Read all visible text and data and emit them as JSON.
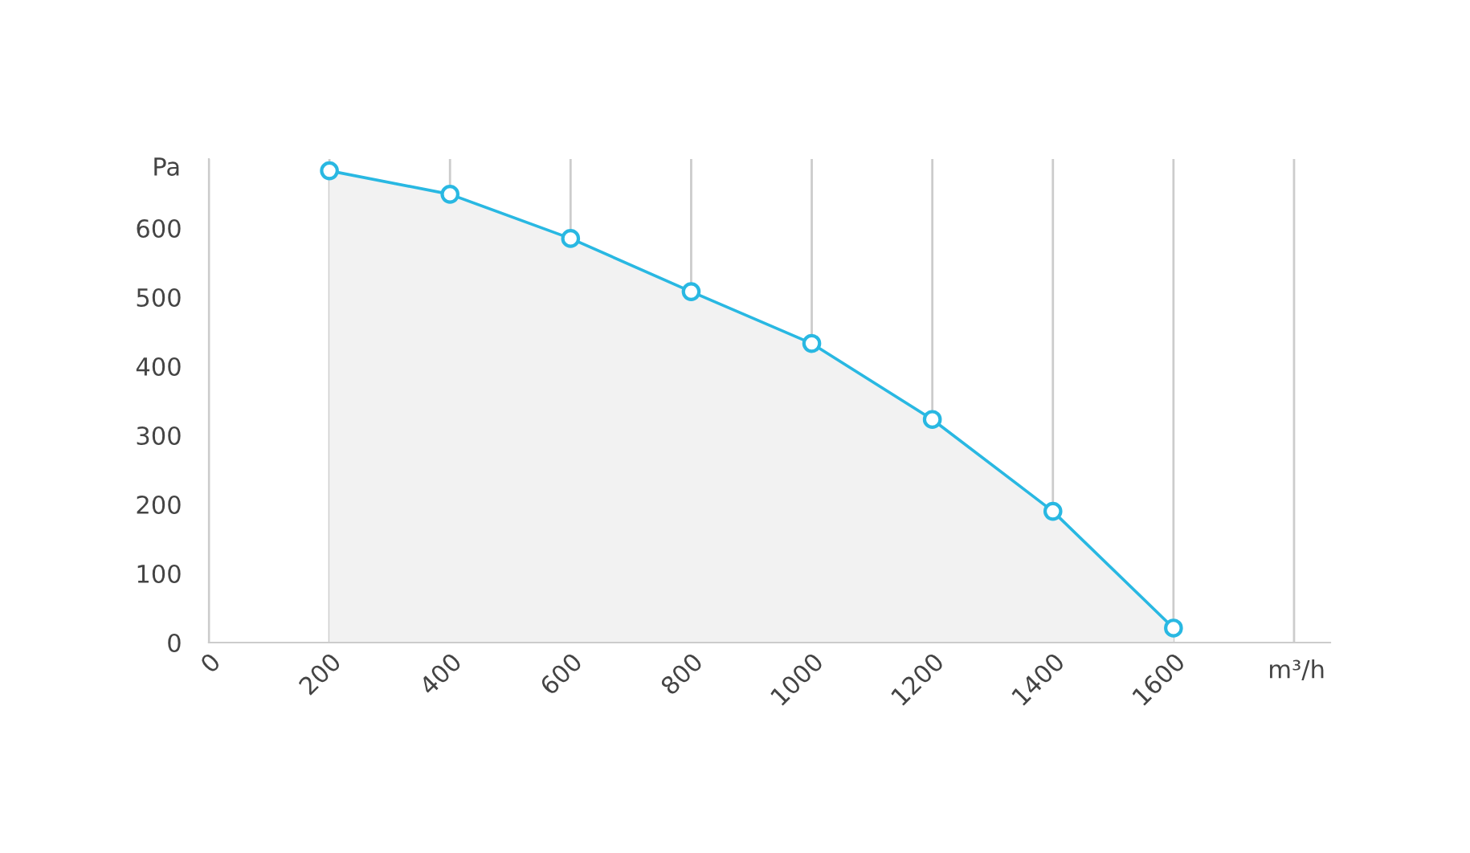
{
  "chart_data": {
    "type": "area",
    "x": [
      200,
      400,
      600,
      800,
      1000,
      1200,
      1400,
      1600
    ],
    "series": [
      {
        "color": "#29b8e2",
        "values": [
          683,
          649,
          585,
          508,
          433,
          323,
          190,
          21
        ]
      }
    ],
    "xlabel": "m³/h",
    "ylabel": "Pa",
    "xlim": [
      0,
      1860
    ],
    "xticks": [
      0,
      200,
      400,
      600,
      800,
      1000,
      1200,
      1400,
      1600,
      {
        "value": 1800,
        "label": null
      }
    ],
    "ylim": [
      0,
      700
    ],
    "yticks": [
      0,
      100,
      200,
      300,
      400,
      500,
      600
    ],
    "grid": "x",
    "marker": "circle",
    "line_style": "solid",
    "legend": false
  }
}
